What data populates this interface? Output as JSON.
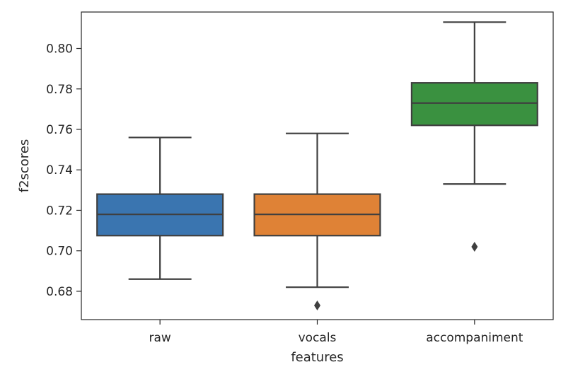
{
  "chart_data": {
    "type": "box",
    "xlabel": "features",
    "ylabel": "f2scores",
    "ylim": [
      0.666,
      0.818
    ],
    "yticks": [
      "0.68",
      "0.70",
      "0.72",
      "0.74",
      "0.76",
      "0.78",
      "0.80"
    ],
    "grid": false,
    "categories": [
      "raw",
      "vocals",
      "accompaniment"
    ],
    "boxes": [
      {
        "name": "raw",
        "color": "#3a75b0",
        "whisker_low": 0.686,
        "q1": 0.7075,
        "median": 0.718,
        "q3": 0.728,
        "whisker_high": 0.756,
        "outliers": []
      },
      {
        "name": "vocals",
        "color": "#df8236",
        "whisker_low": 0.682,
        "q1": 0.7075,
        "median": 0.718,
        "q3": 0.728,
        "whisker_high": 0.758,
        "outliers": [
          0.673
        ]
      },
      {
        "name": "accompaniment",
        "color": "#3a9140",
        "whisker_low": 0.733,
        "q1": 0.762,
        "median": 0.773,
        "q3": 0.783,
        "whisker_high": 0.813,
        "outliers": [
          0.702
        ]
      }
    ]
  }
}
